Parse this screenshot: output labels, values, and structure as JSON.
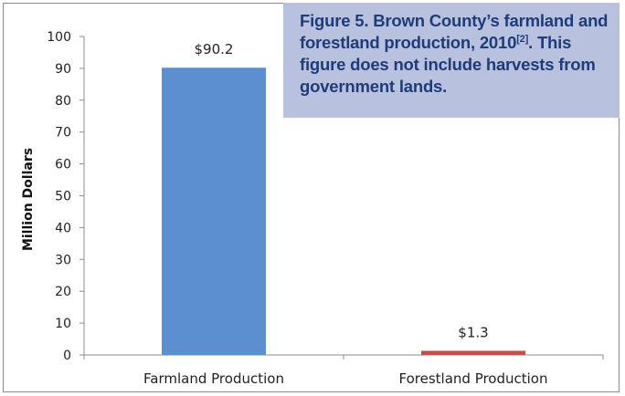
{
  "caption": {
    "main": "Figure 5. Brown County’s farmland and forestland production, 2010",
    "ref": "[2]",
    "rest": ". This figure does not include harvests from government lands."
  },
  "chart_data": {
    "type": "bar",
    "categories": [
      "Farmland Production",
      "Forestland Production"
    ],
    "values": [
      90.2,
      1.3
    ],
    "data_labels": [
      "$90.2",
      "$1.3"
    ],
    "colors": [
      "#5b8fcf",
      "#c0504d"
    ],
    "ylabel": "Million Dollars",
    "xlabel": "",
    "ylim": [
      0,
      100
    ],
    "yticks": [
      "0",
      "10",
      "20",
      "30",
      "40",
      "50",
      "60",
      "70",
      "80",
      "90",
      "100"
    ],
    "grid": false
  }
}
